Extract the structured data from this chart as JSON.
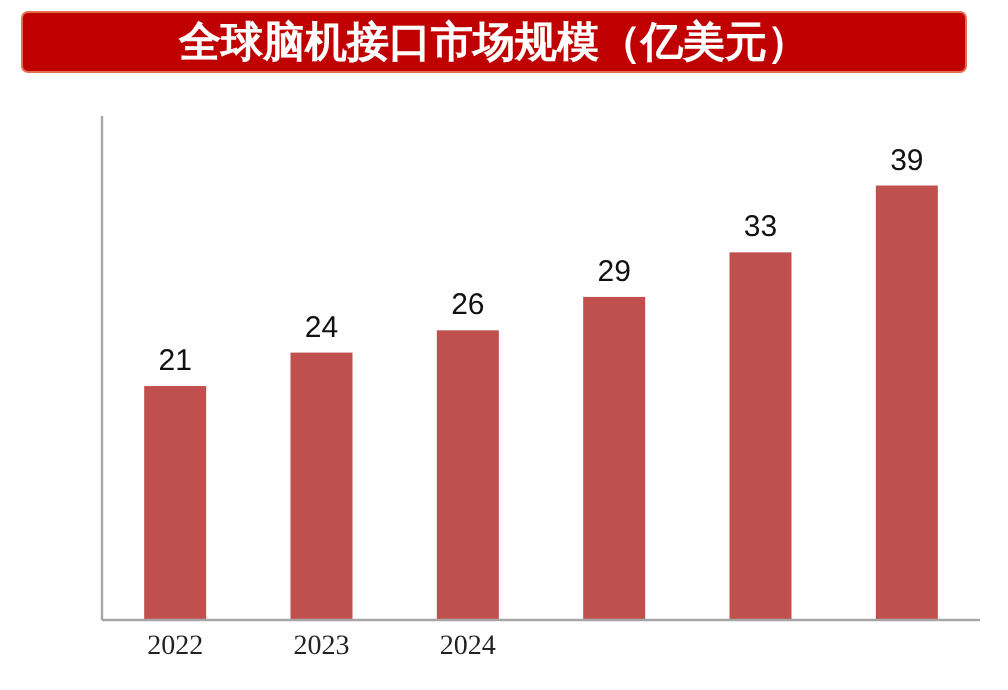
{
  "chart_data": {
    "type": "bar",
    "title": "全球脑机接口市场规模（亿美元）",
    "categories": [
      "2022",
      "2023",
      "2024",
      null,
      null,
      null
    ],
    "values": [
      21,
      24,
      26,
      29,
      33,
      39
    ],
    "color": "#c0504d",
    "data_labels": true
  }
}
